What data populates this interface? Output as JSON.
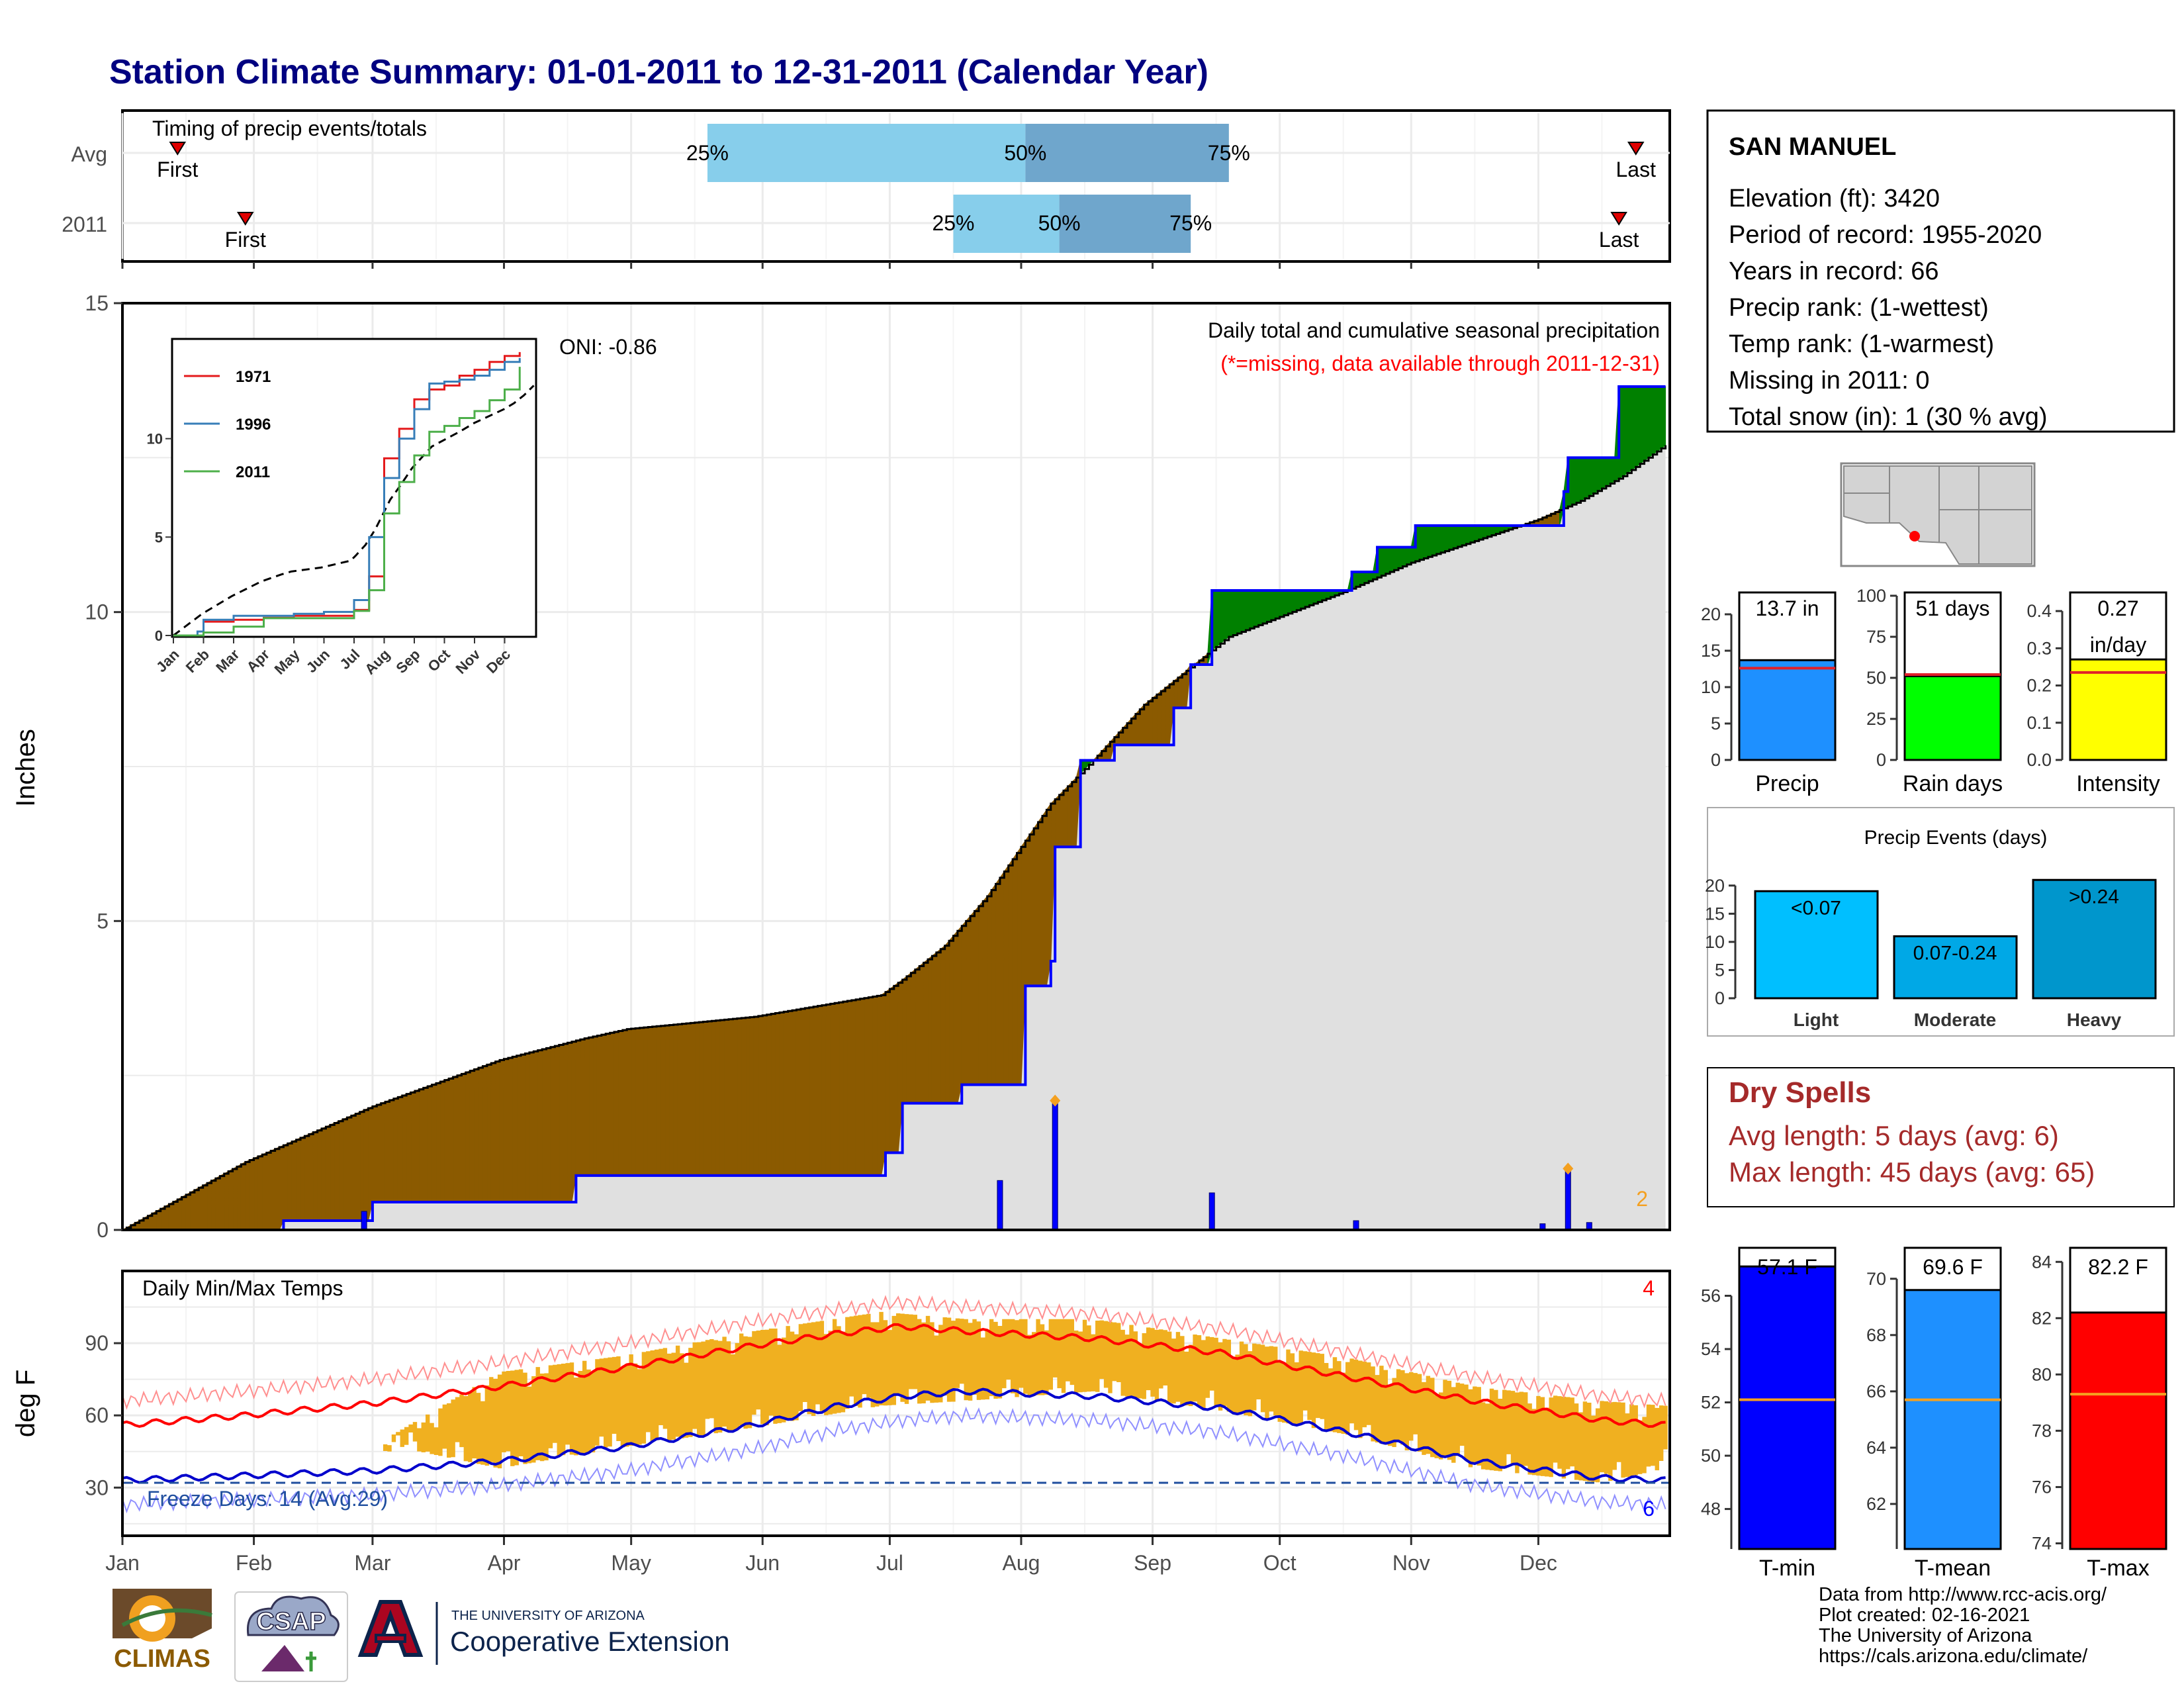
{
  "title": "Station Climate Summary: 01-01-2011 to 12-31-2011 (Calendar Year)",
  "colors": {
    "title": "#000080",
    "avg_light": "#87ceeb",
    "avg_dark": "#6fa6cc",
    "brown": "#8b5a00",
    "green": "#008000",
    "cum_fill": "#e0e0e0",
    "blue_line": "#0000ff",
    "tmax_line": "#ff0000",
    "tmin_line": "#0000cc",
    "temp_bars": "#f0b020",
    "orange_marker": "#f4a020",
    "missing_red": "#ff0000",
    "dry_spells": "#a52a2a"
  },
  "timing": {
    "label": "Timing of precip events/totals",
    "rows": [
      {
        "name": "Avg",
        "first_label": "First",
        "last_label": "Last",
        "first_day": 14,
        "last_day": 358,
        "p25_day": 139,
        "p50_day": 214,
        "p75_day": 262,
        "p25_label": "25%",
        "p50_label": "50%",
        "p75_label": "75%"
      },
      {
        "name": "2011",
        "first_label": "First",
        "last_label": "Last",
        "first_day": 30,
        "last_day": 354,
        "p25_day": 197,
        "p50_day": 222,
        "p75_day": 253,
        "p25_label": "25%",
        "p50_label": "50%",
        "p75_label": "75%"
      }
    ]
  },
  "precip_panel": {
    "ylabel": "Inches",
    "title_line1": "Daily total and cumulative seasonal precipitation",
    "title_line2": "(*=missing, data available through 2011-12-31)",
    "oni_text": "ONI: -0.86",
    "missing_count": "2",
    "yticks": [
      0,
      5,
      10,
      15
    ],
    "ylim": [
      0,
      15
    ]
  },
  "inset": {
    "legend": [
      "1971",
      "1996",
      "2011"
    ],
    "legend_colors": [
      "#e41a1c",
      "#377eb8",
      "#4daf4a"
    ],
    "yticks": [
      0,
      5,
      10
    ],
    "months": [
      "Jan",
      "Feb",
      "Mar",
      "Apr",
      "May",
      "Jun",
      "Jul",
      "Aug",
      "Sep",
      "Oct",
      "Nov",
      "Dec"
    ]
  },
  "temp_panel": {
    "ylabel": "deg F",
    "label": "Daily Min/Max Temps",
    "freeze_text": "Freeze Days: 14 (Avg:29)",
    "missing_max": "4",
    "missing_min": "6",
    "yticks": [
      30,
      60,
      90
    ],
    "freeze_line": 32
  },
  "months": [
    "Jan",
    "Feb",
    "Mar",
    "Apr",
    "May",
    "Jun",
    "Jul",
    "Aug",
    "Sep",
    "Oct",
    "Nov",
    "Dec"
  ],
  "station": {
    "name": "SAN MANUEL",
    "lines": [
      "Elevation (ft): 3420",
      "Period of record: 1955-2020",
      "Years in record: 66",
      "Precip rank:  (1-wettest)",
      "Temp rank:  (1-warmest)",
      "Missing in 2011: 0",
      "Total snow (in): 1 (30 % avg)"
    ]
  },
  "summary_bars": [
    {
      "label": "Precip",
      "value": 13.7,
      "avg": 12.6,
      "max": 23,
      "value_text": "13.7 in",
      "value_text2": "",
      "ticks": [
        0,
        5,
        10,
        15,
        20
      ],
      "color": "#1e90ff"
    },
    {
      "label": "Rain days",
      "value": 51,
      "avg": 52,
      "max": 102,
      "value_text": "51 days",
      "value_text2": "",
      "ticks": [
        0,
        25,
        50,
        75,
        100
      ],
      "color": "#00ff00"
    },
    {
      "label": "Intensity",
      "value": 0.27,
      "avg": 0.235,
      "max": 0.45,
      "value_text": "0.27",
      "value_text2": "in/day",
      "ticks": [
        "0.0",
        "0.1",
        "0.2",
        "0.3",
        "0.4"
      ],
      "color": "#ffff00"
    }
  ],
  "events": {
    "title": "Precip Events (days)",
    "ticks": [
      0,
      5,
      10,
      15,
      20
    ],
    "bars": [
      {
        "label": "Light",
        "value": 19,
        "range_text": "<0.07",
        "color": "#00bfff"
      },
      {
        "label": "Moderate",
        "value": 11,
        "range_text": "0.07-0.24",
        "color": "#00a8e6"
      },
      {
        "label": "Heavy",
        "value": 21,
        "range_text": ">0.24",
        "color": "#0096cc"
      }
    ]
  },
  "dry_spells": {
    "title": "Dry Spells",
    "avg_text": "Avg length: 5 days (avg: 6)",
    "max_text": "Max length: 45 days (avg: 65)"
  },
  "temp_bars": [
    {
      "label": "T-min",
      "value": 57.1,
      "avg": 52.1,
      "ymin": 46.5,
      "ymax": 57.8,
      "value_text": "57.1 F",
      "ticks": [
        48,
        50,
        52,
        54,
        56
      ],
      "color": "#0000ff"
    },
    {
      "label": "T-mean",
      "value": 69.6,
      "avg": 65.7,
      "ymin": 60.4,
      "ymax": 71.1,
      "value_text": "69.6 F",
      "ticks": [
        62,
        64,
        66,
        68,
        70
      ],
      "color": "#1e90ff"
    },
    {
      "label": "T-max",
      "value": 82.2,
      "avg": 79.3,
      "ymin": 73.8,
      "ymax": 84.5,
      "value_text": "82.2 F",
      "ticks": [
        74,
        76,
        78,
        80,
        82,
        84
      ],
      "color": "#ff0000"
    }
  ],
  "footer": {
    "lines": [
      "Data from http://www.rcc-acis.org/",
      "Plot created: 02-16-2021",
      "The University of Arizona",
      "https://cals.arizona.edu/climate/"
    ],
    "climas": "CLIMAS",
    "csap": "CSAP",
    "ua_small": "THE UNIVERSITY OF ARIZONA",
    "ua_big": "Cooperative Extension"
  },
  "chart_data": {
    "type": "area",
    "title": "Station Climate Summary: 01-01-2011 to 12-31-2011 (Calendar Year)",
    "ylabel": "Inches",
    "ylim": [
      0,
      15
    ],
    "cumulative_2011": {
      "days": [
        1,
        38,
        39,
        59,
        60,
        107,
        108,
        180,
        181,
        184,
        185,
        198,
        199,
        213,
        214,
        219,
        220,
        221,
        226,
        227,
        234,
        235,
        248,
        249,
        252,
        253,
        257,
        258,
        290,
        291,
        296,
        297,
        305,
        306,
        340,
        341,
        342,
        353,
        354,
        365
      ],
      "values": [
        0,
        0,
        0.15,
        0.15,
        0.45,
        0.45,
        0.88,
        0.88,
        1.25,
        1.25,
        2.05,
        2.05,
        2.35,
        2.35,
        3.95,
        3.95,
        4.35,
        6.2,
        6.2,
        7.6,
        7.6,
        7.85,
        7.85,
        8.45,
        8.45,
        9.15,
        9.15,
        10.35,
        10.35,
        10.65,
        10.65,
        11.05,
        11.05,
        11.4,
        11.4,
        11.95,
        12.5,
        12.5,
        13.65,
        13.65
      ]
    },
    "cumulative_avg": {
      "days": [
        1,
        30,
        60,
        90,
        110,
        120,
        150,
        180,
        185,
        195,
        205,
        212,
        220,
        230,
        242,
        252,
        262,
        275,
        290,
        305,
        320,
        335,
        345,
        355,
        365
      ],
      "values": [
        0,
        1.1,
        2.0,
        2.75,
        3.1,
        3.25,
        3.45,
        3.8,
        4.05,
        4.6,
        5.4,
        6.1,
        6.9,
        7.6,
        8.5,
        9.05,
        9.6,
        9.95,
        10.35,
        10.8,
        11.15,
        11.5,
        11.8,
        12.2,
        12.7
      ]
    },
    "daily_precip": {
      "days": [
        58,
        208,
        221,
        258,
        292,
        336,
        342,
        347
      ],
      "values": [
        0.3,
        0.8,
        2.05,
        0.6,
        0.15,
        0.1,
        0.95,
        0.12
      ]
    },
    "inset_series": [
      {
        "name": "1971",
        "months": [
          1,
          2,
          3,
          4,
          5,
          6,
          7,
          7.5,
          8,
          8.5,
          9,
          9.5,
          10,
          10.5,
          11,
          11.5,
          12,
          12.5
        ],
        "values": [
          0,
          0.7,
          0.8,
          0.9,
          1,
          1,
          1.3,
          3,
          9,
          10.5,
          12,
          12.5,
          12.7,
          13.2,
          13.5,
          13.9,
          14.2,
          14.4
        ]
      },
      {
        "name": "1996",
        "months": [
          1,
          1.8,
          2,
          3,
          4,
          5,
          6,
          7,
          7.5,
          8,
          8.5,
          9,
          9.5,
          10,
          10.5,
          11,
          11.5,
          12,
          12.5
        ],
        "values": [
          0,
          0.2,
          0.8,
          1,
          1,
          1.1,
          1.2,
          1.8,
          5,
          8,
          10,
          11.5,
          12.8,
          12.9,
          13,
          13.2,
          13.5,
          13.9,
          14.1
        ]
      },
      {
        "name": "2011",
        "months": [
          1,
          2,
          3,
          4,
          5,
          6,
          7,
          7.5,
          8,
          8.5,
          9,
          9.5,
          10,
          10.5,
          11,
          11.5,
          12,
          12.5
        ],
        "values": [
          0,
          0.15,
          0.45,
          0.88,
          0.88,
          0.88,
          1.25,
          2.3,
          6.2,
          7.8,
          9.15,
          10.35,
          10.65,
          11.05,
          11.4,
          11.95,
          12.5,
          13.65
        ]
      }
    ],
    "temps": {
      "tmax_avg": {
        "days": [
          1,
          30,
          60,
          90,
          120,
          150,
          170,
          185,
          200,
          230,
          260,
          290,
          320,
          350,
          365
        ],
        "values": [
          56,
          60,
          65,
          72,
          80,
          89,
          94,
          97,
          95,
          92,
          86,
          76,
          66,
          58,
          56
        ]
      },
      "tmin_avg": {
        "days": [
          1,
          30,
          60,
          90,
          120,
          150,
          170,
          185,
          200,
          230,
          260,
          290,
          320,
          350,
          365
        ],
        "values": [
          33,
          35,
          37,
          41,
          47,
          56,
          64,
          68,
          70,
          68,
          63,
          53,
          41,
          34,
          33
        ]
      },
      "obs_high": {
        "days": [
          63,
          90,
          120,
          150,
          180,
          200,
          230,
          260,
          290,
          320,
          350,
          365
        ],
        "values": [
          50,
          78,
          85,
          95,
          103,
          100,
          100,
          92,
          84,
          72,
          66,
          64
        ]
      },
      "obs_low": {
        "days": [
          63,
          90,
          120,
          150,
          180,
          200,
          230,
          260,
          290,
          320,
          350,
          365
        ],
        "values": [
          48,
          38,
          47,
          55,
          64,
          66,
          70,
          62,
          52,
          38,
          32,
          38
        ]
      }
    }
  }
}
